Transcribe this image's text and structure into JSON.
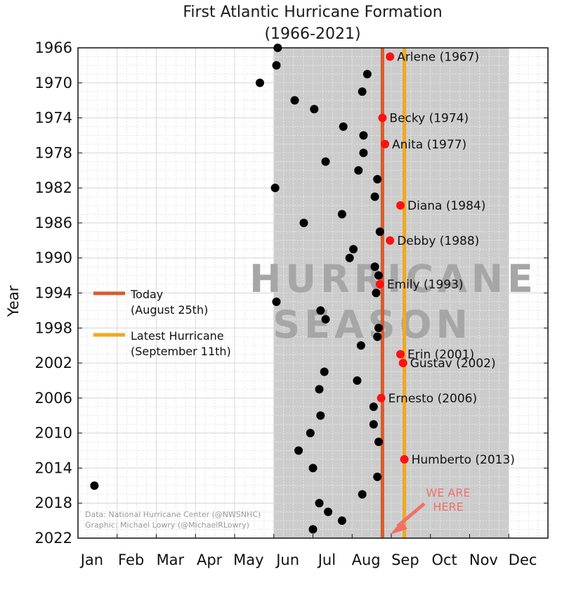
{
  "chart_data": {
    "type": "scatter",
    "title": "First Atlantic Hurricane Formation",
    "subtitle": "(1966-2021)",
    "ylabel": "Year",
    "xlabel": "",
    "x_ticks": [
      "Jan",
      "Feb",
      "Mar",
      "Apr",
      "May",
      "Jun",
      "Jul",
      "Aug",
      "Sep",
      "Oct",
      "Nov",
      "Dec"
    ],
    "y_ticks": [
      "1966",
      "1970",
      "1974",
      "1978",
      "1982",
      "1986",
      "1990",
      "1994",
      "1998",
      "2002",
      "2006",
      "2010",
      "2014",
      "2018",
      "2022"
    ],
    "ylim": [
      1966,
      2022
    ],
    "xlim_months": [
      1,
      13
    ],
    "y_reversed": true,
    "grid": true,
    "hurricane_season": {
      "label_line1": "HURRICANE",
      "label_line2": "SEASON",
      "start": "Jun 1",
      "end": "Nov 30",
      "color": "#cccccc"
    },
    "reference_lines": [
      {
        "label_line1": "Today",
        "label_line2": "(August 25th)",
        "date": "Aug 25",
        "color": "#d95b2b"
      },
      {
        "label_line1": "Latest Hurricane",
        "label_line2": "(September 11th)",
        "date": "Sep 11",
        "color": "#f0a91e"
      }
    ],
    "legend_placement": "left-middle",
    "series": [
      {
        "color": "#000000",
        "points": [
          {
            "date": "Jun 4",
            "year": 1966
          },
          {
            "date": "Jun 3",
            "year": 1968
          },
          {
            "date": "Aug 13",
            "year": 1969
          },
          {
            "date": "May 21",
            "year": 1970
          },
          {
            "date": "Aug 9",
            "year": 1971
          },
          {
            "date": "Jun 17",
            "year": 1972
          },
          {
            "date": "Jul 2",
            "year": 1973
          },
          {
            "date": "Jul 25",
            "year": 1975
          },
          {
            "date": "Aug 10",
            "year": 1976
          },
          {
            "date": "Aug 10",
            "year": 1978
          },
          {
            "date": "Jul 11",
            "year": 1979
          },
          {
            "date": "Aug 6",
            "year": 1980
          },
          {
            "date": "Aug 21",
            "year": 1981
          },
          {
            "date": "Jun 2",
            "year": 1982
          },
          {
            "date": "Aug 19",
            "year": 1983
          },
          {
            "date": "Jul 24",
            "year": 1985
          },
          {
            "date": "Jun 24",
            "year": 1986
          },
          {
            "date": "Aug 23",
            "year": 1987
          },
          {
            "date": "Aug 2",
            "year": 1989
          },
          {
            "date": "Jul 30",
            "year": 1990
          },
          {
            "date": "Aug 19",
            "year": 1991
          },
          {
            "date": "Aug 22",
            "year": 1992
          },
          {
            "date": "Aug 20",
            "year": 1994
          },
          {
            "date": "Jun 3",
            "year": 1995
          },
          {
            "date": "Jul 7",
            "year": 1996
          },
          {
            "date": "Jul 11",
            "year": 1997
          },
          {
            "date": "Aug 22",
            "year": 1998
          },
          {
            "date": "Aug 21",
            "year": 1999
          },
          {
            "date": "Aug 8",
            "year": 2000
          },
          {
            "date": "Jul 10",
            "year": 2003
          },
          {
            "date": "Aug 5",
            "year": 2004
          },
          {
            "date": "Jul 6",
            "year": 2005
          },
          {
            "date": "Aug 18",
            "year": 2007
          },
          {
            "date": "Jul 7",
            "year": 2008
          },
          {
            "date": "Aug 18",
            "year": 2009
          },
          {
            "date": "Jun 29",
            "year": 2010
          },
          {
            "date": "Aug 22",
            "year": 2011
          },
          {
            "date": "Jun 20",
            "year": 2012
          },
          {
            "date": "Jul 1",
            "year": 2014
          },
          {
            "date": "Aug 21",
            "year": 2015
          },
          {
            "date": "Jan 14",
            "year": 2016
          },
          {
            "date": "Aug 9",
            "year": 2017
          },
          {
            "date": "Jul 6",
            "year": 2018
          },
          {
            "date": "Jul 13",
            "year": 2019
          },
          {
            "date": "Jul 24",
            "year": 2020
          },
          {
            "date": "Jul 1",
            "year": 2021
          }
        ]
      },
      {
        "color": "#ff1010",
        "points": [
          {
            "date": "Aug 31",
            "year": 1967,
            "label": "Arlene (1967)"
          },
          {
            "date": "Aug 25",
            "year": 1974,
            "label": "Becky (1974)"
          },
          {
            "date": "Aug 27",
            "year": 1977,
            "label": "Anita (1977)"
          },
          {
            "date": "Sep 8",
            "year": 1984,
            "label": "Diana (1984)"
          },
          {
            "date": "Aug 31",
            "year": 1988,
            "label": "Debby (1988)"
          },
          {
            "date": "Aug 23",
            "year": 1993,
            "label": "Emily (1993)"
          },
          {
            "date": "Sep 8",
            "year": 2001,
            "label": "Erin (2001)"
          },
          {
            "date": "Sep 10",
            "year": 2002,
            "label": "Gustav (2002)"
          },
          {
            "date": "Aug 24",
            "year": 2006,
            "label": "Ernesto (2006)"
          },
          {
            "date": "Sep 11",
            "year": 2013,
            "label": "Humberto (2013)"
          }
        ]
      }
    ],
    "annotations": {
      "here_line1": "WE ARE",
      "here_line2": "HERE",
      "credit_line1": "Data: National Hurricane Center (@NWSNHC)",
      "credit_line2": "Graphic: Michael Lowry (@MichaelRLowry)"
    }
  }
}
